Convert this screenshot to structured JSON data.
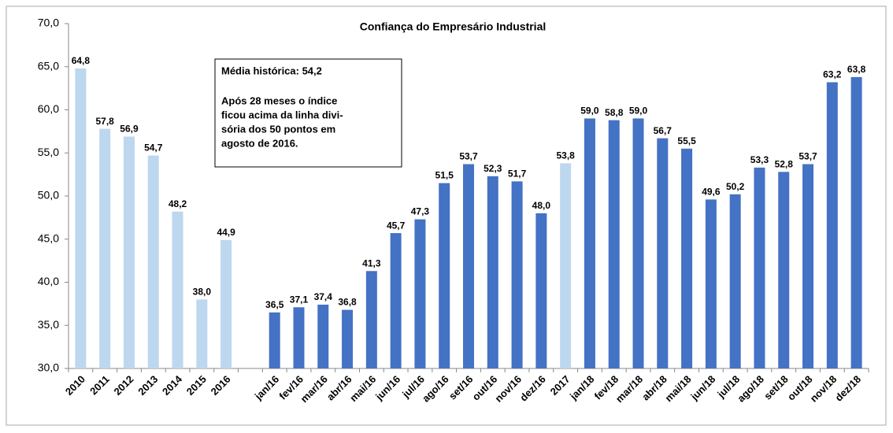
{
  "chart_data": {
    "type": "bar",
    "title": "Confiança do Empresário Industrial",
    "categories": [
      "2010",
      "2011",
      "2012",
      "2013",
      "2014",
      "2015",
      "2016",
      null,
      "jan/16",
      "fev/16",
      "mar/16",
      "abr/16",
      "mai/16",
      "jun/16",
      "jul/16",
      "ago/16",
      "set/16",
      "out/16",
      "nov/16",
      "dez/16",
      "2017",
      "jan/18",
      "fev/18",
      "mar/18",
      "abr/18",
      "mai/18",
      "jun/18",
      "jul/18",
      "ago/18",
      "set/18",
      "out/18",
      "nov/18",
      "dez/18"
    ],
    "values": [
      64.8,
      57.8,
      56.9,
      54.7,
      48.2,
      38.0,
      44.9,
      null,
      36.5,
      37.1,
      37.4,
      36.8,
      41.3,
      45.7,
      47.3,
      51.5,
      53.7,
      52.3,
      51.7,
      48.0,
      53.8,
      59.0,
      58.8,
      59.0,
      56.7,
      55.5,
      49.6,
      50.2,
      53.3,
      52.8,
      53.7,
      63.2,
      63.8
    ],
    "value_labels": [
      "64,8",
      "57,8",
      "56,9",
      "54,7",
      "48,2",
      "38,0",
      "44,9",
      null,
      "36,5",
      "37,1",
      "37,4",
      "36,8",
      "41,3",
      "45,7",
      "47,3",
      "51,5",
      "53,7",
      "52,3",
      "51,7",
      "48,0",
      "53,8",
      "59,0",
      "58,8",
      "59,0",
      "56,7",
      "55,5",
      "49,6",
      "50,2",
      "53,3",
      "52,8",
      "53,7",
      "63,2",
      "63,8"
    ],
    "colors": [
      "#bdd7ee",
      "#bdd7ee",
      "#bdd7ee",
      "#bdd7ee",
      "#bdd7ee",
      "#bdd7ee",
      "#bdd7ee",
      null,
      "#4472c4",
      "#4472c4",
      "#4472c4",
      "#4472c4",
      "#4472c4",
      "#4472c4",
      "#4472c4",
      "#4472c4",
      "#4472c4",
      "#4472c4",
      "#4472c4",
      "#4472c4",
      "#bdd7ee",
      "#4472c4",
      "#4472c4",
      "#4472c4",
      "#4472c4",
      "#4472c4",
      "#4472c4",
      "#4472c4",
      "#4472c4",
      "#4472c4",
      "#4472c4",
      "#4472c4",
      "#4472c4"
    ],
    "ylim": [
      30,
      70
    ],
    "yticks": [
      {
        "value": 30,
        "label": "30,0"
      },
      {
        "value": 35,
        "label": "35,0"
      },
      {
        "value": 40,
        "label": "40,0"
      },
      {
        "value": 45,
        "label": "45,0"
      },
      {
        "value": 50,
        "label": "50,0"
      },
      {
        "value": 55,
        "label": "55,0"
      },
      {
        "value": 60,
        "label": "60,0"
      },
      {
        "value": 65,
        "label": "65,0"
      },
      {
        "value": 70,
        "label": "70,0"
      }
    ],
    "grid": false,
    "annotation": {
      "heading": "Média histórica: 54,2",
      "lines": [
        "Após 28 meses o índice",
        "ficou acima da linha divi-",
        "sória dos 50 pontos em",
        "agosto de 2016."
      ]
    }
  }
}
